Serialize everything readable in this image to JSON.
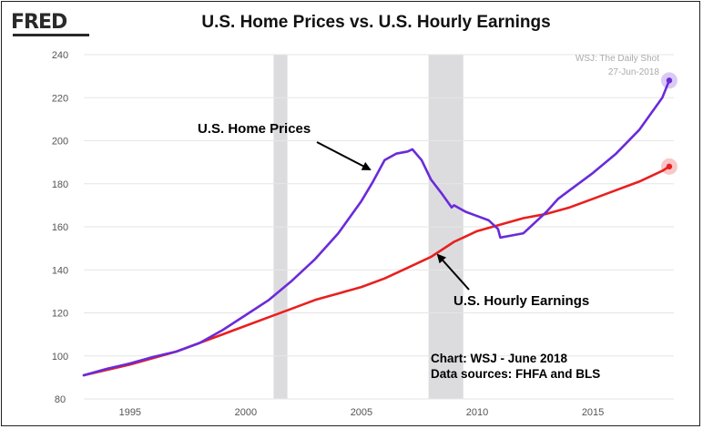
{
  "header": {
    "logo": "FRED",
    "title": "U.S. Home Prices vs. U.S. Hourly Earnings"
  },
  "watermark": {
    "line1": "WSJ: The Daily Shot",
    "line2": "27-Jun-2018"
  },
  "annotations": {
    "home_label": "U.S. Home Prices",
    "earnings_label": "U.S. Hourly Earnings",
    "source_line1": "Chart:  WSJ - June 2018",
    "source_line2": "Data sources:  FHFA and BLS"
  },
  "chart_data": {
    "type": "line",
    "title": "U.S. Home Prices vs. U.S. Hourly Earnings",
    "xlabel": "",
    "ylabel": "",
    "xlim": [
      1993.0,
      2018.5
    ],
    "ylim": [
      80,
      240
    ],
    "x_ticks": [
      1995,
      2000,
      2005,
      2010,
      2015
    ],
    "y_ticks": [
      80,
      100,
      120,
      140,
      160,
      180,
      200,
      220,
      240
    ],
    "grid": true,
    "recessions": [
      [
        2001.2,
        2001.8
      ],
      [
        2007.9,
        2009.4
      ]
    ],
    "colors": {
      "home_prices": "#6a2bd9",
      "hourly_earnings": "#e8201f",
      "recession": "#dcdcdf"
    },
    "series": [
      {
        "key": "home_prices",
        "x": [
          1993.0,
          1994.0,
          1995.0,
          1996.0,
          1997.0,
          1998.0,
          1999.0,
          2000.0,
          2001.0,
          2002.0,
          2003.0,
          2004.0,
          2005.0,
          2005.5,
          2006.0,
          2006.5,
          2007.0,
          2007.2,
          2007.6,
          2008.0,
          2008.5,
          2008.9,
          2009.0,
          2009.5,
          2010.0,
          2010.5,
          2010.9,
          2011.0,
          2011.5,
          2012.0,
          2012.5,
          2013.0,
          2013.5,
          2014.0,
          2015.0,
          2016.0,
          2017.0,
          2018.0,
          2018.3
        ],
        "values": [
          91,
          94,
          96.5,
          99.5,
          102,
          106,
          112,
          119,
          126,
          135,
          145,
          157,
          172,
          181,
          191,
          194,
          195,
          196,
          191,
          182,
          175,
          169,
          170,
          167,
          165,
          163,
          159,
          155,
          156,
          157,
          162,
          167,
          173,
          177,
          185,
          194,
          205,
          220,
          228
        ]
      },
      {
        "key": "hourly_earnings",
        "x": [
          1993.0,
          1995.0,
          1997.0,
          1999.0,
          2001.0,
          2002.0,
          2003.0,
          2004.0,
          2005.0,
          2006.0,
          2007.0,
          2008.0,
          2009.0,
          2010.0,
          2011.0,
          2012.0,
          2013.0,
          2014.0,
          2015.0,
          2016.0,
          2017.0,
          2018.0,
          2018.3
        ],
        "values": [
          91,
          96,
          102,
          110,
          118,
          122,
          126,
          129,
          132,
          136,
          141,
          146,
          153,
          158,
          161,
          164,
          166,
          169,
          173,
          177,
          181,
          186,
          188
        ]
      }
    ]
  }
}
